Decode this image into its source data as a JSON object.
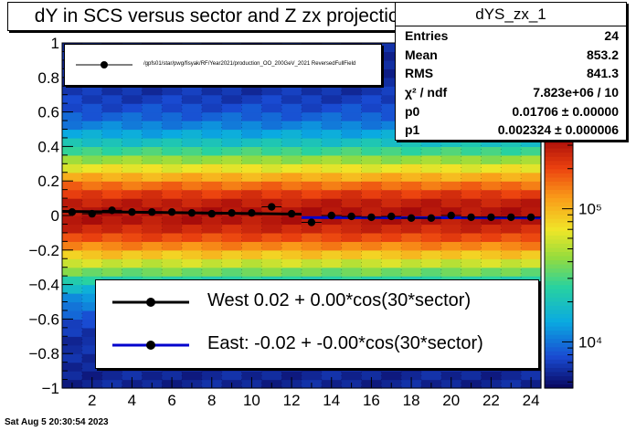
{
  "title": "dY in SCS versus sector and Z zx projection",
  "stats": {
    "name": "dYS_zx_1",
    "rows": [
      {
        "key": "Entries",
        "value": "24"
      },
      {
        "key": "Mean",
        "value": "853.2"
      },
      {
        "key": "RMS",
        "value": "841.3"
      },
      {
        "key": "χ² / ndf",
        "value": "7.823e+06 / 10"
      },
      {
        "key": "p0",
        "value": "0.01706 ± 0.00000"
      },
      {
        "key": "p1",
        "value": "0.002324 ± 0.000006"
      }
    ]
  },
  "legend_top": {
    "label": "/gpfs01/star/pwg/fisyak/RF/Year2021/production_OO_200GeV_2021 ReversedFullField"
  },
  "legend_bottom": {
    "entries": [
      {
        "label": "West  0.02 +  0.00*cos(30*sector)",
        "color": "#000000"
      },
      {
        "label": "East: -0.02 + -0.00*cos(30*sector)",
        "color": "#0000cc"
      }
    ]
  },
  "timestamp": "Sat Aug  5 20:30:54 2023",
  "chart_data": {
    "type": "scatter",
    "title": "dY in SCS versus sector and Z zx projection",
    "xlim": [
      0.5,
      24.5
    ],
    "ylim": [
      -1,
      1
    ],
    "x_ticks": [
      "2",
      "4",
      "6",
      "8",
      "10",
      "12",
      "14",
      "16",
      "18",
      "20",
      "22",
      "24"
    ],
    "y_ticks": [
      "−1",
      "−0.8",
      "−0.6",
      "−0.4",
      "−0.2",
      "0",
      "0.2",
      "0.4",
      "0.6",
      "0.8",
      "1"
    ],
    "z_scale": "log",
    "z_ticks": [
      "10⁴",
      "10⁵"
    ],
    "series": [
      {
        "name": "West",
        "color": "#000000",
        "x": [
          1,
          2,
          3,
          4,
          5,
          6,
          7,
          8,
          9,
          10,
          11,
          12
        ],
        "y": [
          0.02,
          0.01,
          0.03,
          0.02,
          0.02,
          0.02,
          0.015,
          0.01,
          0.015,
          0.015,
          0.05,
          0.01
        ],
        "fit": [
          0.024,
          0.008
        ]
      },
      {
        "name": "East",
        "color": "#0000cc",
        "x": [
          13,
          14,
          15,
          16,
          17,
          18,
          19,
          20,
          21,
          22,
          23,
          24
        ],
        "y": [
          -0.04,
          0.0,
          -0.005,
          -0.01,
          -0.005,
          -0.015,
          -0.015,
          0.0,
          -0.01,
          -0.01,
          -0.01,
          -0.01
        ],
        "fit": [
          -0.012,
          -0.014
        ]
      }
    ]
  }
}
